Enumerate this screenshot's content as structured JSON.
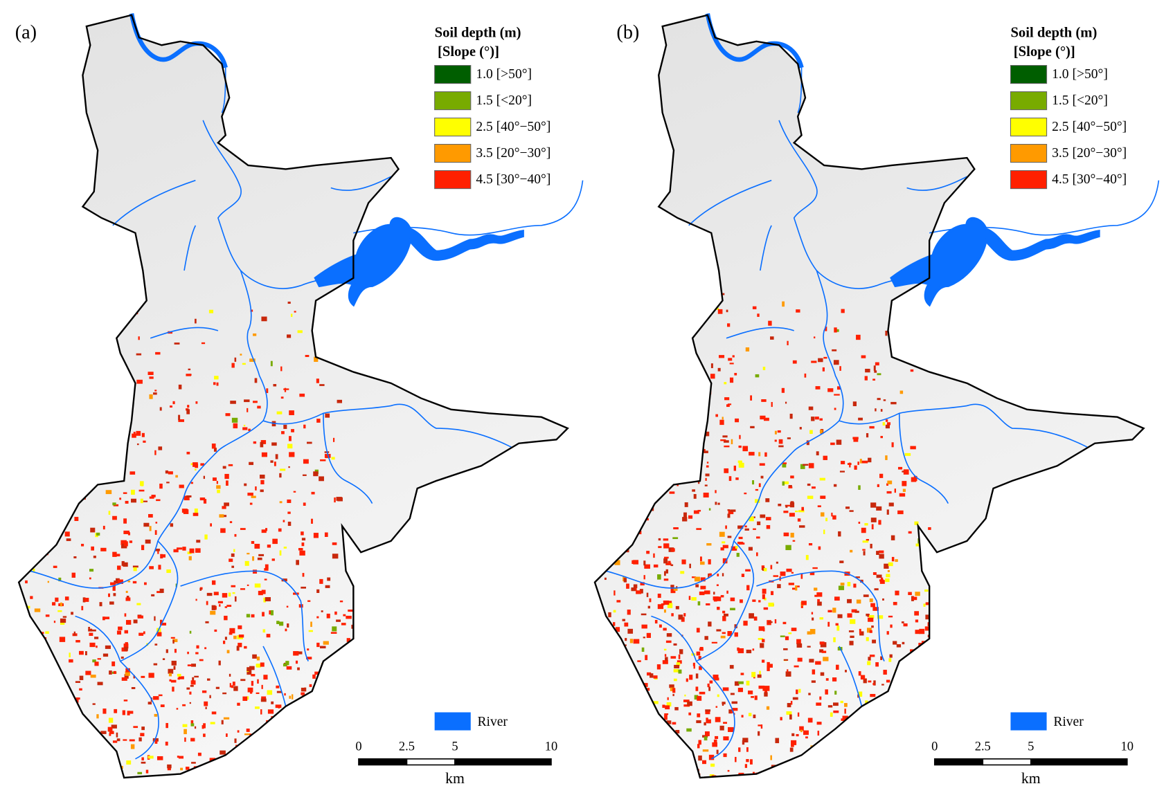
{
  "panels": [
    {
      "label": "(a)",
      "legend": {
        "title": "Soil depth (m)",
        "subtitle": "[Slope (°)]",
        "items": [
          {
            "label": "1.0 [>50°]",
            "color": "#005e00"
          },
          {
            "label": "1.5 [<20°]",
            "color": "#78ab00"
          },
          {
            "label": "2.5 [40°−50°]",
            "color": "#ffff00"
          },
          {
            "label": "3.5 [20°−30°]",
            "color": "#ff9a00"
          },
          {
            "label": "4.5 [30°−40°]",
            "color": "#ff2000"
          }
        ]
      },
      "river": {
        "label": "River",
        "color": "#0a6fff"
      },
      "scale_bar": {
        "ticks": [
          0,
          2.5,
          5,
          10
        ],
        "unit": "km"
      }
    },
    {
      "label": "(b)",
      "legend": {
        "title": "Soil depth (m)",
        "subtitle": "[Slope (°)]",
        "items": [
          {
            "label": "1.0 [>50°]",
            "color": "#005e00"
          },
          {
            "label": "1.5 [<20°]",
            "color": "#78ab00"
          },
          {
            "label": "2.5 [40°−50°]",
            "color": "#ffff00"
          },
          {
            "label": "3.5 [20°−30°]",
            "color": "#ff9a00"
          },
          {
            "label": "4.5 [30°−40°]",
            "color": "#ff2000"
          }
        ]
      },
      "river": {
        "label": "River",
        "color": "#0a6fff"
      },
      "scale_bar": {
        "ticks": [
          0,
          2.5,
          5,
          10
        ],
        "unit": "km"
      }
    }
  ]
}
